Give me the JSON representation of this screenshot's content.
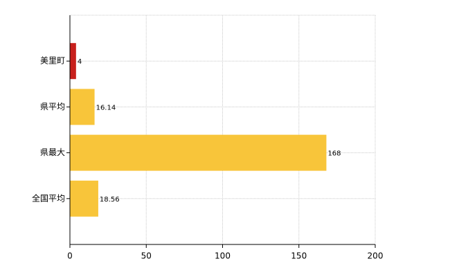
{
  "chart_data": {
    "type": "barh",
    "categories": [
      "美里町",
      "県平均",
      "県最大",
      "全国平均"
    ],
    "values": [
      4,
      16.14,
      168,
      18.56
    ],
    "colors": [
      "#c8201c",
      "#f8c53a",
      "#f8c53a",
      "#f8c53a"
    ],
    "xlim": [
      0,
      200
    ],
    "xticks": [
      0,
      50,
      100,
      150,
      200
    ],
    "grid": true
  }
}
